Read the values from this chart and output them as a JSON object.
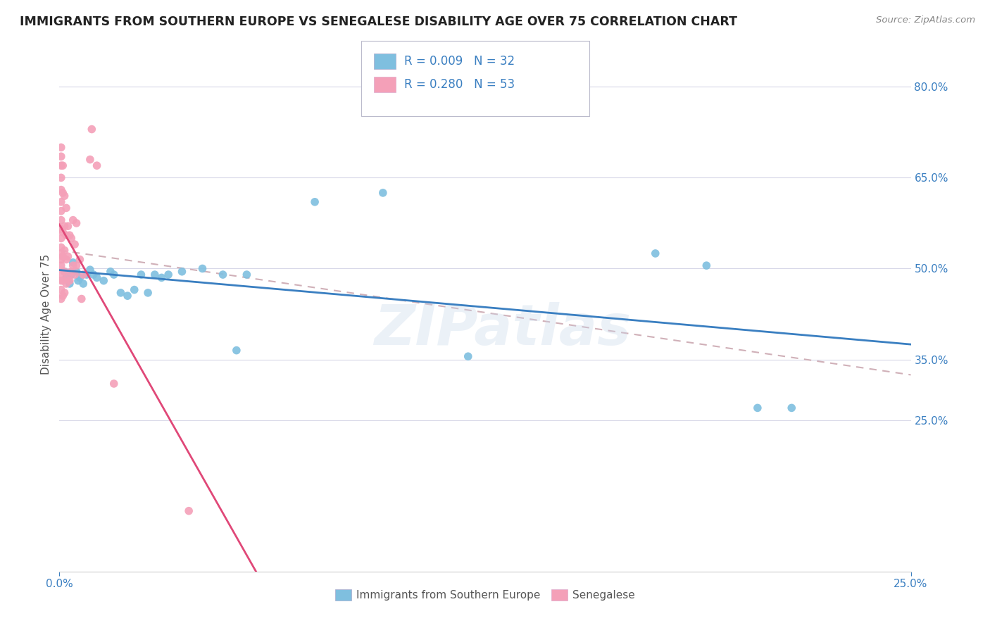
{
  "title": "IMMIGRANTS FROM SOUTHERN EUROPE VS SENEGALESE DISABILITY AGE OVER 75 CORRELATION CHART",
  "source": "Source: ZipAtlas.com",
  "ylabel": "Disability Age Over 75",
  "watermark": "ZIPatlas",
  "blue_color": "#7fbfdf",
  "pink_color": "#f4a0b8",
  "blue_line_color": "#3a7fc1",
  "pink_line_color": "#e04878",
  "dashed_line_color": "#d0b0b8",
  "blue_scatter": [
    [
      0.15,
      49.5
    ],
    [
      0.2,
      48.5
    ],
    [
      0.3,
      47.5
    ],
    [
      0.35,
      49.0
    ],
    [
      0.4,
      51.0
    ],
    [
      0.5,
      49.5
    ],
    [
      0.55,
      48.0
    ],
    [
      0.6,
      48.5
    ],
    [
      0.7,
      47.5
    ],
    [
      0.8,
      49.0
    ],
    [
      0.9,
      49.8
    ],
    [
      1.0,
      49.0
    ],
    [
      1.1,
      48.5
    ],
    [
      1.3,
      48.0
    ],
    [
      1.5,
      49.5
    ],
    [
      1.6,
      49.0
    ],
    [
      1.8,
      46.0
    ],
    [
      2.0,
      45.5
    ],
    [
      2.2,
      46.5
    ],
    [
      2.4,
      49.0
    ],
    [
      2.6,
      46.0
    ],
    [
      2.8,
      49.0
    ],
    [
      3.0,
      48.5
    ],
    [
      3.2,
      49.0
    ],
    [
      3.6,
      49.5
    ],
    [
      4.2,
      50.0
    ],
    [
      4.8,
      49.0
    ],
    [
      5.2,
      36.5
    ],
    [
      5.5,
      49.0
    ],
    [
      7.5,
      61.0
    ],
    [
      9.5,
      62.5
    ],
    [
      12.0,
      35.5
    ],
    [
      17.5,
      52.5
    ],
    [
      19.0,
      50.5
    ],
    [
      20.5,
      27.0
    ],
    [
      21.5,
      27.0
    ]
  ],
  "pink_scatter": [
    [
      0.05,
      45.0
    ],
    [
      0.05,
      46.5
    ],
    [
      0.05,
      48.0
    ],
    [
      0.05,
      49.0
    ],
    [
      0.05,
      50.5
    ],
    [
      0.05,
      51.5
    ],
    [
      0.05,
      52.5
    ],
    [
      0.05,
      53.5
    ],
    [
      0.05,
      55.0
    ],
    [
      0.05,
      56.5
    ],
    [
      0.05,
      58.0
    ],
    [
      0.05,
      59.5
    ],
    [
      0.05,
      61.0
    ],
    [
      0.05,
      63.0
    ],
    [
      0.05,
      65.0
    ],
    [
      0.05,
      67.0
    ],
    [
      0.05,
      68.5
    ],
    [
      0.05,
      70.0
    ],
    [
      0.1,
      45.5
    ],
    [
      0.1,
      48.0
    ],
    [
      0.1,
      52.0
    ],
    [
      0.1,
      56.0
    ],
    [
      0.1,
      62.5
    ],
    [
      0.1,
      67.0
    ],
    [
      0.15,
      46.0
    ],
    [
      0.15,
      49.5
    ],
    [
      0.15,
      53.0
    ],
    [
      0.15,
      57.0
    ],
    [
      0.15,
      62.0
    ],
    [
      0.2,
      47.5
    ],
    [
      0.2,
      51.5
    ],
    [
      0.2,
      55.5
    ],
    [
      0.2,
      60.0
    ],
    [
      0.25,
      48.5
    ],
    [
      0.25,
      52.0
    ],
    [
      0.25,
      57.0
    ],
    [
      0.3,
      48.0
    ],
    [
      0.3,
      55.5
    ],
    [
      0.35,
      49.5
    ],
    [
      0.35,
      55.0
    ],
    [
      0.4,
      50.5
    ],
    [
      0.4,
      58.0
    ],
    [
      0.45,
      49.0
    ],
    [
      0.45,
      54.0
    ],
    [
      0.5,
      50.5
    ],
    [
      0.5,
      57.5
    ],
    [
      0.6,
      51.5
    ],
    [
      0.65,
      45.0
    ],
    [
      0.7,
      49.0
    ],
    [
      0.9,
      68.0
    ],
    [
      0.95,
      73.0
    ],
    [
      1.1,
      67.0
    ],
    [
      1.6,
      31.0
    ],
    [
      3.8,
      10.0
    ]
  ],
  "xmin": 0.0,
  "xmax": 25.0,
  "ymin": 0.0,
  "ymax": 85.0,
  "yticks": [
    25.0,
    35.0,
    50.0,
    65.0,
    80.0
  ],
  "ytick_labels": [
    "25.0%",
    "35.0%",
    "50.0%",
    "65.0%",
    "80.0%"
  ],
  "grid_color": "#d8d8e8",
  "background_color": "#ffffff"
}
